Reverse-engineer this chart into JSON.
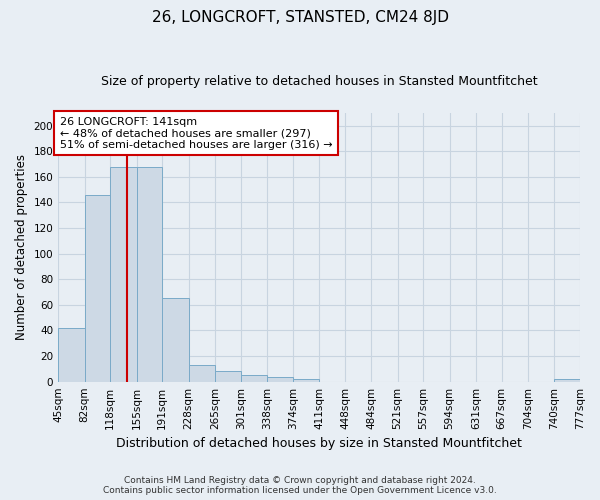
{
  "title": "26, LONGCROFT, STANSTED, CM24 8JD",
  "subtitle": "Size of property relative to detached houses in Stansted Mountfitchet",
  "xlabel": "Distribution of detached houses by size in Stansted Mountfitchet",
  "ylabel": "Number of detached properties",
  "footer_line1": "Contains HM Land Registry data © Crown copyright and database right 2024.",
  "footer_line2": "Contains public sector information licensed under the Open Government Licence v3.0.",
  "bins": [
    45,
    82,
    118,
    155,
    191,
    228,
    265,
    301,
    338,
    374,
    411,
    448,
    484,
    521,
    557,
    594,
    631,
    667,
    704,
    740,
    777
  ],
  "bar_values": [
    42,
    146,
    168,
    168,
    65,
    13,
    8,
    5,
    4,
    2,
    0,
    0,
    0,
    0,
    0,
    0,
    0,
    0,
    0,
    2
  ],
  "bar_color": "#cdd9e5",
  "bar_edge_color": "#7aaac8",
  "property_size": 141,
  "vline_color": "#cc0000",
  "annotation_text": "26 LONGCROFT: 141sqm\n← 48% of detached houses are smaller (297)\n51% of semi-detached houses are larger (316) →",
  "annotation_box_color": "#ffffff",
  "annotation_box_edge_color": "#cc0000",
  "ylim": [
    0,
    210
  ],
  "yticks": [
    0,
    20,
    40,
    60,
    80,
    100,
    120,
    140,
    160,
    180,
    200
  ],
  "bg_color": "#e8eef4",
  "plot_bg_color": "#e8eef4",
  "grid_color": "#c8d4e0",
  "title_fontsize": 11,
  "subtitle_fontsize": 9,
  "xlabel_fontsize": 9,
  "ylabel_fontsize": 8.5,
  "tick_fontsize": 7.5,
  "annotation_fontsize": 8
}
